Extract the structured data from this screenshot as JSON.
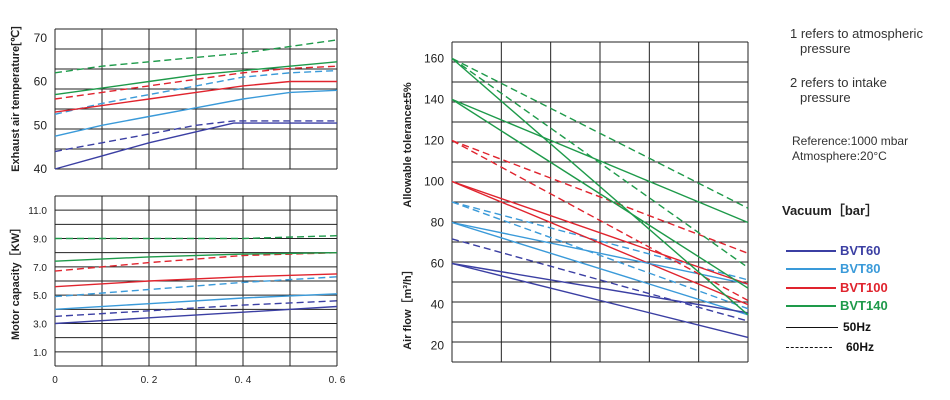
{
  "notes": {
    "line1a": "1 refers to atmospheric",
    "line1b": "pressure",
    "line2a": "2 refers to intake",
    "line2b": "pressure",
    "ref1": "Reference:1000 mbar",
    "ref2": "Atmosphere:20°C"
  },
  "legend": {
    "title": "Vacuum［bar］",
    "items": [
      {
        "label": "BVT60",
        "color": "#3b3fa3",
        "style": "solid"
      },
      {
        "label": "BVT80",
        "color": "#3a9ad9",
        "style": "solid"
      },
      {
        "label": "BVT100",
        "color": "#e0242e",
        "style": "solid"
      },
      {
        "label": "BVT140",
        "color": "#1e9a4a",
        "style": "solid"
      },
      {
        "label": "50Hz",
        "color": "#111111",
        "style": "solid"
      },
      {
        "label": "60Hz",
        "color": "#111111",
        "style": "dashed"
      }
    ]
  },
  "chart_data": [
    {
      "id": "temp",
      "type": "line",
      "title": "",
      "ylabel": "Exhaust air temperature[℃]",
      "xlim": [
        0,
        0.6
      ],
      "ylim": [
        40,
        72
      ],
      "yticks": [
        40,
        50,
        60,
        70
      ],
      "xtick_labels": [],
      "grid": true,
      "series": [
        {
          "model": "BVT60",
          "freq": "50Hz",
          "color": "#3b3fa3",
          "dash": false,
          "x": [
            0,
            0.1,
            0.2,
            0.3,
            0.38,
            0.5,
            0.6
          ],
          "y": [
            40,
            43,
            46,
            48.5,
            50.5,
            50.5,
            50.5
          ]
        },
        {
          "model": "BVT60",
          "freq": "60Hz",
          "color": "#3b3fa3",
          "dash": true,
          "x": [
            0,
            0.1,
            0.2,
            0.3,
            0.38,
            0.5,
            0.6
          ],
          "y": [
            44,
            46,
            48,
            50,
            51,
            51,
            51
          ]
        },
        {
          "model": "BVT80",
          "freq": "50Hz",
          "color": "#3a9ad9",
          "dash": false,
          "x": [
            0,
            0.1,
            0.2,
            0.3,
            0.4,
            0.5,
            0.6
          ],
          "y": [
            47.5,
            50,
            52,
            54,
            56,
            57.5,
            58
          ]
        },
        {
          "model": "BVT80",
          "freq": "60Hz",
          "color": "#3a9ad9",
          "dash": true,
          "x": [
            0,
            0.1,
            0.2,
            0.3,
            0.4,
            0.5,
            0.6
          ],
          "y": [
            52.5,
            55,
            57,
            59,
            61,
            62,
            62.5
          ]
        },
        {
          "model": "BVT100",
          "freq": "50Hz",
          "color": "#e0242e",
          "dash": false,
          "x": [
            0,
            0.1,
            0.2,
            0.3,
            0.4,
            0.5,
            0.6
          ],
          "y": [
            53,
            54.5,
            56,
            57.5,
            59,
            60,
            60
          ]
        },
        {
          "model": "BVT100",
          "freq": "60Hz",
          "color": "#e0242e",
          "dash": true,
          "x": [
            0,
            0.1,
            0.2,
            0.3,
            0.4,
            0.5,
            0.6
          ],
          "y": [
            56,
            57.5,
            59,
            60.5,
            62,
            63,
            63.5
          ]
        },
        {
          "model": "BVT140",
          "freq": "50Hz",
          "color": "#1e9a4a",
          "dash": false,
          "x": [
            0,
            0.1,
            0.2,
            0.3,
            0.4,
            0.5,
            0.6
          ],
          "y": [
            57,
            58.5,
            60,
            61.5,
            62.5,
            63.5,
            64.5
          ]
        },
        {
          "model": "BVT140",
          "freq": "60Hz",
          "color": "#1e9a4a",
          "dash": true,
          "x": [
            0,
            0.1,
            0.2,
            0.3,
            0.4,
            0.5,
            0.6
          ],
          "y": [
            62,
            63.5,
            64.5,
            65.5,
            66.5,
            68,
            69.5
          ]
        }
      ]
    },
    {
      "id": "motor",
      "type": "line",
      "title": "",
      "ylabel": "Motor capacity［KW］",
      "xlim": [
        0,
        0.6
      ],
      "ylim": [
        0,
        12
      ],
      "yticks": [
        1.0,
        3.0,
        5.0,
        7.0,
        9.0,
        11.0
      ],
      "xtick_labels": [
        "0",
        "0. 2",
        "0. 4",
        "0. 6"
      ],
      "xtick_values": [
        0,
        0.2,
        0.4,
        0.6
      ],
      "grid": true,
      "series": [
        {
          "model": "BVT60",
          "freq": "50Hz",
          "color": "#3b3fa3",
          "dash": false,
          "x": [
            0,
            0.2,
            0.4,
            0.6
          ],
          "y": [
            3.0,
            3.4,
            3.8,
            4.2
          ]
        },
        {
          "model": "BVT60",
          "freq": "60Hz",
          "color": "#3b3fa3",
          "dash": true,
          "x": [
            0,
            0.2,
            0.4,
            0.6
          ],
          "y": [
            3.5,
            3.9,
            4.3,
            4.6
          ]
        },
        {
          "model": "BVT80",
          "freq": "50Hz",
          "color": "#3a9ad9",
          "dash": false,
          "x": [
            0,
            0.2,
            0.4,
            0.6
          ],
          "y": [
            4.0,
            4.4,
            4.8,
            5.1
          ]
        },
        {
          "model": "BVT80",
          "freq": "60Hz",
          "color": "#3a9ad9",
          "dash": true,
          "x": [
            0,
            0.2,
            0.4,
            0.6
          ],
          "y": [
            4.9,
            5.4,
            5.9,
            6.3
          ]
        },
        {
          "model": "BVT100",
          "freq": "50Hz",
          "color": "#e0242e",
          "dash": false,
          "x": [
            0,
            0.2,
            0.4,
            0.6
          ],
          "y": [
            5.6,
            6.0,
            6.3,
            6.5
          ]
        },
        {
          "model": "BVT100",
          "freq": "60Hz",
          "color": "#e0242e",
          "dash": true,
          "x": [
            0,
            0.2,
            0.4,
            0.6
          ],
          "y": [
            6.7,
            7.3,
            7.8,
            8.0
          ]
        },
        {
          "model": "BVT140",
          "freq": "50Hz",
          "color": "#1e9a4a",
          "dash": false,
          "x": [
            0,
            0.2,
            0.4,
            0.6
          ],
          "y": [
            7.4,
            7.7,
            7.9,
            8.0
          ]
        },
        {
          "model": "BVT140",
          "freq": "60Hz",
          "color": "#1e9a4a",
          "dash": true,
          "x": [
            0,
            0.2,
            0.4,
            0.6
          ],
          "y": [
            9.0,
            9.0,
            9.0,
            9.2
          ]
        }
      ]
    },
    {
      "id": "airflow",
      "type": "line",
      "title": "",
      "ylabel_top": "Allowable tolerance±5%",
      "ylabel_bottom": "Air flow［m³/h］",
      "xlim": [
        0,
        0.6
      ],
      "ylim": [
        12,
        168
      ],
      "yticks": [
        20,
        40,
        60,
        80,
        100,
        120,
        140,
        160
      ],
      "xtick_labels": [],
      "grid": true,
      "series": [
        {
          "model": "BVT60",
          "freq": "50Hz",
          "color": "#3b3fa3",
          "dash": false,
          "x": [
            0,
            0.6
          ],
          "y": [
            60,
            24
          ]
        },
        {
          "model": "BVT60",
          "freq": "60Hz",
          "color": "#3b3fa3",
          "dash": true,
          "x": [
            0,
            0.6
          ],
          "y": [
            72,
            32
          ]
        },
        {
          "model": "BVT80",
          "freq": "50Hz",
          "color": "#3a9ad9",
          "dash": false,
          "x": [
            0,
            0.6
          ],
          "y": [
            80,
            35
          ]
        },
        {
          "model": "BVT80",
          "freq": "60Hz",
          "color": "#3a9ad9",
          "dash": true,
          "x": [
            0,
            0.6
          ],
          "y": [
            90,
            52
          ]
        },
        {
          "model": "BVT100",
          "freq": "50Hz",
          "color": "#e0242e",
          "dash": false,
          "x": [
            0,
            0.6
          ],
          "y": [
            100,
            40
          ]
        },
        {
          "model": "BVT100",
          "freq": "60Hz",
          "color": "#e0242e",
          "dash": true,
          "x": [
            0,
            0.6
          ],
          "y": [
            120,
            65
          ]
        },
        {
          "model": "BVT140",
          "freq": "50Hz",
          "color": "#1e9a4a",
          "dash": false,
          "x": [
            0,
            0.6
          ],
          "y": [
            140,
            80
          ]
        },
        {
          "model": "BVT140",
          "freq": "60Hz",
          "color": "#1e9a4a",
          "dash": true,
          "x": [
            0,
            0.6
          ],
          "y": [
            160,
            87
          ]
        },
        {
          "model": "BVT60",
          "freq": "50Hz",
          "color": "#3b3fa3",
          "dash": false,
          "x": [
            0,
            0.6
          ],
          "y": [
            60,
            36
          ]
        },
        {
          "model": "BVT80",
          "freq": "50Hz",
          "color": "#3a9ad9",
          "dash": false,
          "x": [
            0,
            0.6
          ],
          "y": [
            80,
            50
          ]
        },
        {
          "model": "BVT80",
          "freq": "60Hz",
          "color": "#3a9ad9",
          "dash": true,
          "x": [
            0,
            0.6
          ],
          "y": [
            90,
            38
          ]
        },
        {
          "model": "BVT100",
          "freq": "50Hz",
          "color": "#e0242e",
          "dash": false,
          "x": [
            0,
            0.6
          ],
          "y": [
            100,
            50
          ]
        },
        {
          "model": "BVT100",
          "freq": "60Hz",
          "color": "#e0242e",
          "dash": true,
          "x": [
            0,
            0.6
          ],
          "y": [
            120,
            42
          ]
        },
        {
          "model": "BVT140",
          "freq": "50Hz",
          "color": "#1e9a4a",
          "dash": false,
          "x": [
            0,
            0.6
          ],
          "y": [
            140,
            48
          ]
        },
        {
          "model": "BVT140",
          "freq": "60Hz",
          "color": "#1e9a4a",
          "dash": true,
          "x": [
            0,
            0.6
          ],
          "y": [
            160,
            58
          ]
        },
        {
          "model": "BVT140",
          "freq": "50Hz",
          "color": "#1e9a4a",
          "dash": false,
          "x": [
            0,
            0.6
          ],
          "y": [
            160,
            35
          ]
        }
      ]
    }
  ]
}
